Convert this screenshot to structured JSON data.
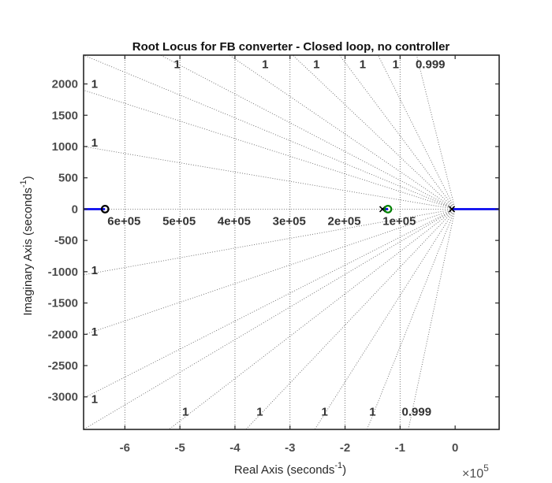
{
  "chart_data": {
    "type": "line",
    "title": "Root Locus for FB converter - Closed loop, no controller",
    "xlabel": "Real Axis (seconds",
    "xlabel_sup": "-1",
    "xlabel_end": ")",
    "ylabel": "Imaginary Axis (seconds",
    "ylabel_sup": "-1",
    "ylabel_end": ")",
    "x_multiplier_prefix": "×10",
    "x_multiplier_exp": "5",
    "xlim": [
      -675000,
      80000
    ],
    "ylim": [
      -3520,
      2460
    ],
    "x_tick_values": [
      -600000,
      -500000,
      -400000,
      -300000,
      -200000,
      -100000,
      0
    ],
    "x_tick_labels": [
      "-6",
      "-5",
      "-4",
      "-3",
      "-2",
      "-1",
      "0"
    ],
    "y_tick_values": [
      2000,
      1500,
      1000,
      500,
      0,
      -500,
      -1000,
      -1500,
      -2000,
      -2500,
      -3000
    ],
    "y_tick_labels": [
      "2000",
      "1500",
      "1000",
      "500",
      "0",
      "-500",
      "-1000",
      "-1500",
      "-2000",
      "-2500",
      "-3000"
    ],
    "grid_natural_frequency_labels": [
      {
        "value": 600000,
        "text": "6e+05"
      },
      {
        "value": 500000,
        "text": "5e+05"
      },
      {
        "value": 400000,
        "text": "4e+05"
      },
      {
        "value": 300000,
        "text": "3e+05"
      },
      {
        "value": 200000,
        "text": "2e+05"
      },
      {
        "value": 100000,
        "text": "1e+05"
      }
    ],
    "grid_damping_labels": [
      {
        "text": "1",
        "x": -505000,
        "y": 2250
      },
      {
        "text": "1",
        "x": -345000,
        "y": 2250
      },
      {
        "text": "1",
        "x": -252000,
        "y": 2250
      },
      {
        "text": "1",
        "x": -168000,
        "y": 2250
      },
      {
        "text": "1",
        "x": -108000,
        "y": 2250
      },
      {
        "text": "0.999",
        "x": -45000,
        "y": 2250
      },
      {
        "text": "1",
        "x": -655000,
        "y": 1940
      },
      {
        "text": "1",
        "x": -655000,
        "y": 1000
      },
      {
        "text": "1",
        "x": -655000,
        "y": -1040
      },
      {
        "text": "1",
        "x": -655000,
        "y": -2020
      },
      {
        "text": "1",
        "x": -655000,
        "y": -3100
      },
      {
        "text": "1",
        "x": -490000,
        "y": -3300
      },
      {
        "text": "1",
        "x": -355000,
        "y": -3300
      },
      {
        "text": "1",
        "x": -237000,
        "y": -3300
      },
      {
        "text": "1",
        "x": -150000,
        "y": -3300
      },
      {
        "text": "0.999",
        "x": -70000,
        "y": -3300
      }
    ],
    "grid_damping_ray_endpoints": [
      [
        -675000,
        2460
      ],
      [
        -675000,
        1900
      ],
      [
        -675000,
        1000
      ],
      [
        -675000,
        0
      ],
      [
        -675000,
        -1050
      ],
      [
        -675000,
        -2010
      ],
      [
        -675000,
        -3020
      ],
      [
        -675000,
        -3520
      ],
      [
        -535000,
        2460
      ],
      [
        -410000,
        2460
      ],
      [
        -295000,
        2460
      ],
      [
        -210000,
        2460
      ],
      [
        -140000,
        2460
      ],
      [
        -70000,
        2460
      ],
      [
        -520000,
        -3520
      ],
      [
        -380000,
        -3520
      ],
      [
        -255000,
        -3520
      ],
      [
        -160000,
        -3520
      ],
      [
        -85000,
        -3520
      ]
    ],
    "grid_natural_frequencies": [
      100000,
      200000,
      300000,
      400000,
      500000,
      600000
    ],
    "series": [
      {
        "role": "locus",
        "color": "#0000ee",
        "points": [
          [
            -675000,
            0
          ],
          [
            -636000,
            0
          ]
        ]
      },
      {
        "role": "locus",
        "color": "#0000ee",
        "points": [
          [
            -6000,
            0
          ],
          [
            80000,
            0
          ]
        ]
      },
      {
        "role": "locus",
        "color": "#0000ee",
        "points": [
          [
            -133000,
            0
          ],
          [
            -122000,
            0
          ]
        ]
      }
    ],
    "zeros": [
      [
        -636000,
        0
      ],
      [
        -122000,
        0
      ]
    ],
    "poles": [
      [
        -132000,
        0
      ],
      [
        -6000,
        0
      ]
    ],
    "pole_zero_color": "#000000",
    "zero_highlight_color": "#008000",
    "grid": true
  }
}
